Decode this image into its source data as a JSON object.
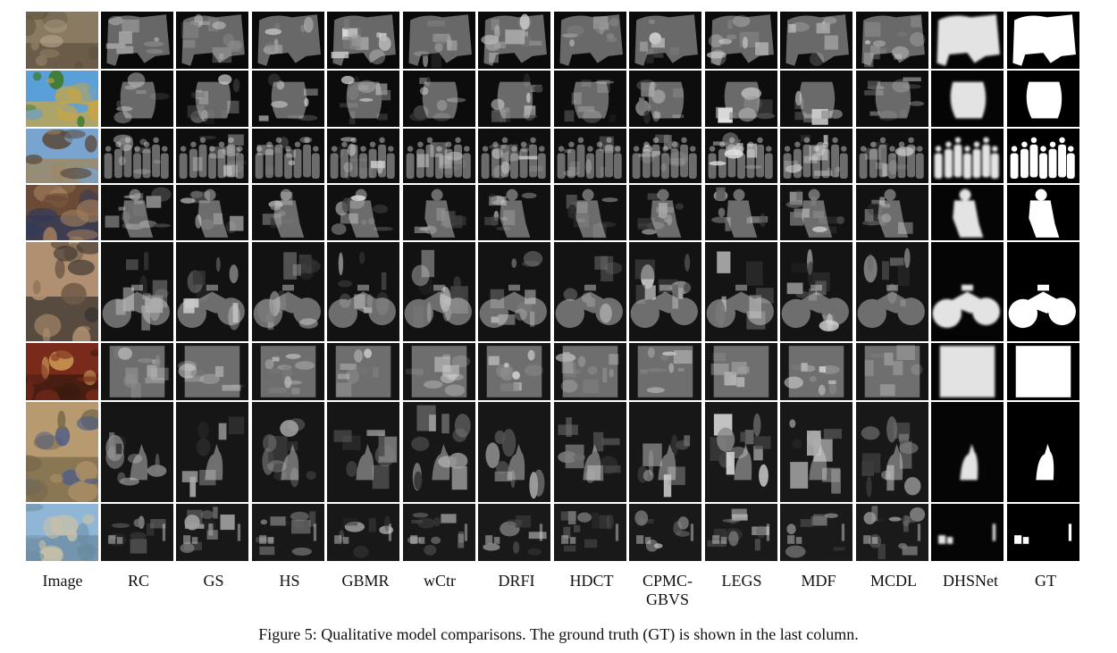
{
  "figure": {
    "column_labels": [
      "Image",
      "RC",
      "GS",
      "HS",
      "GBMR",
      "wCtr",
      "DRFI",
      "HDCT",
      "CPMC-\nGBVS",
      "LEGS",
      "MDF",
      "MCDL",
      "DHSNet",
      "GT"
    ],
    "caption": "Figure 5: Qualitative model comparisons. The ground truth (GT) is shown in the last column.",
    "rows": [
      {
        "scene": "leopard on rocks",
        "photo_colors": [
          "#8a7a62",
          "#b5a58c",
          "#5f5340"
        ],
        "gt": "animal"
      },
      {
        "scene": "glass bowl on lawn",
        "photo_colors": [
          "#5aa0d8",
          "#3e7a2c",
          "#c9a545"
        ],
        "gt": "bowl"
      },
      {
        "scene": "group of people standing",
        "photo_colors": [
          "#7aa4d0",
          "#5a4a3c",
          "#a0865c"
        ],
        "gt": "people"
      },
      {
        "scene": "person sitting in market",
        "photo_colors": [
          "#6b4a36",
          "#a07e5c",
          "#2f3a5a"
        ],
        "gt": "seated-person"
      },
      {
        "scene": "building with bicycle",
        "photo_colors": [
          "#b09070",
          "#6e5a48",
          "#3a3430"
        ],
        "gt": "bicycle"
      },
      {
        "scene": "golden sign panel",
        "photo_colors": [
          "#7a2a1a",
          "#d0a05a",
          "#3a1a10"
        ],
        "gt": "rectangle"
      },
      {
        "scene": "cat under plant",
        "photo_colors": [
          "#b89a70",
          "#4a5a8a",
          "#7a6a4a"
        ],
        "gt": "cat"
      },
      {
        "scene": "beach with people",
        "photo_colors": [
          "#8fb6d6",
          "#c8c0a8",
          "#6a8aa0"
        ],
        "gt": "small-people"
      }
    ]
  }
}
